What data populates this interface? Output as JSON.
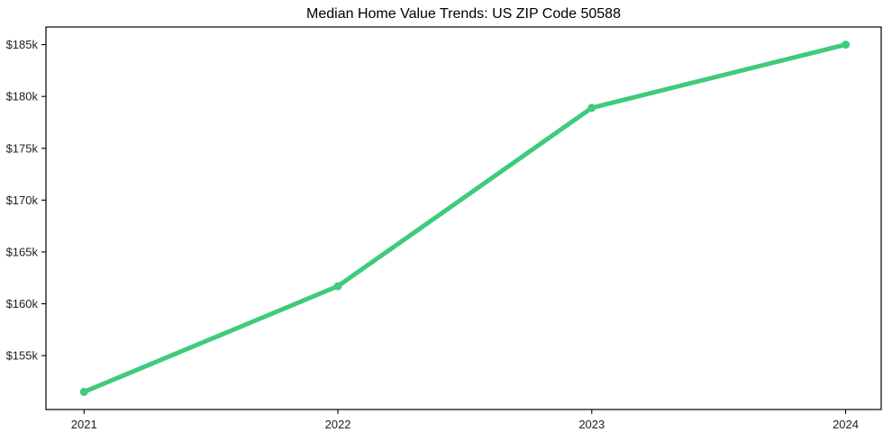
{
  "page": {
    "background": "#ffffff"
  },
  "chart_data": {
    "type": "line",
    "title": "Median Home Value Trends: US ZIP Code 50588",
    "x": [
      2021,
      2022,
      2023,
      2024
    ],
    "x_tick_labels": [
      "2021",
      "2022",
      "2023",
      "2024"
    ],
    "series": [
      {
        "values": [
          151500,
          161700,
          178900,
          185000
        ],
        "color": "#3ecb7c"
      }
    ],
    "y_ticks": [
      155000,
      160000,
      165000,
      170000,
      175000,
      180000,
      185000
    ],
    "y_tick_labels": [
      "$155k",
      "$160k",
      "$165k",
      "$170k",
      "$175k",
      "$180k",
      "$185k"
    ],
    "xlim": [
      2020.85,
      2024.14
    ],
    "ylim": [
      149800,
      186700
    ],
    "grid": false,
    "legend": "none",
    "marker": "circle",
    "colors": {
      "line": "#3ecb7c",
      "axis": "#000000",
      "text": "#212121",
      "title": "#000000",
      "background": "#ffffff"
    }
  }
}
